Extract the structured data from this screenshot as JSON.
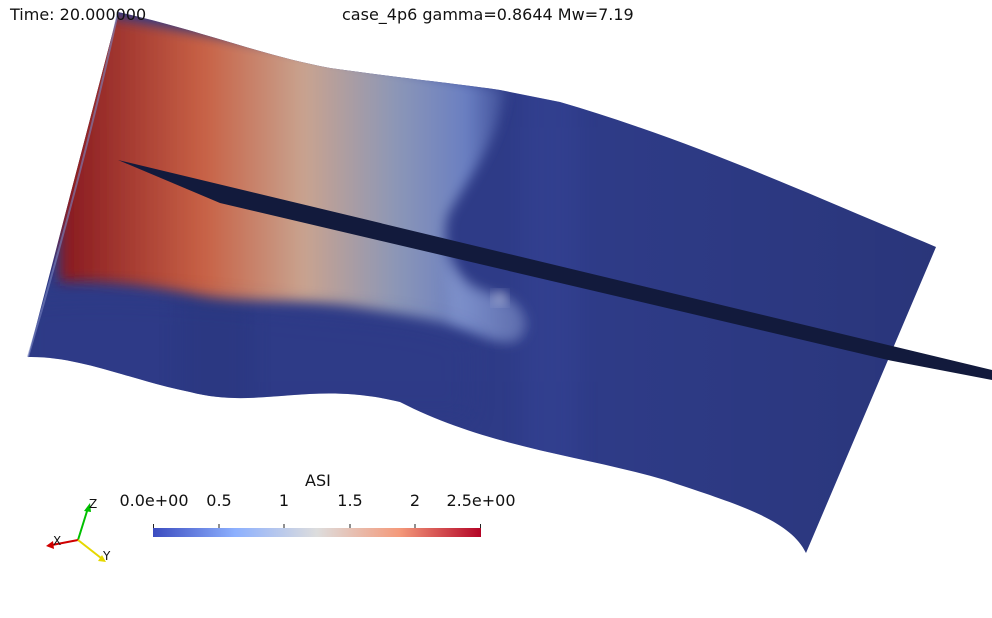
{
  "overlay": {
    "time_text": "Time: 20.000000",
    "title_text": "case_4p6 gamma=0.8644 Mw=7.19"
  },
  "colorbar": {
    "title": "ASI",
    "tick_labels": [
      "0.0e+00",
      "0.5",
      "1",
      "1.5",
      "2",
      "2.5e+00"
    ],
    "range": [
      0,
      2.5
    ],
    "colormap": "cool-to-warm",
    "colors": [
      "#3b4cc0",
      "#dddddd",
      "#b40426"
    ]
  },
  "orientation_axes": {
    "x_label": "X",
    "y_label": "Y",
    "z_label": "Z",
    "x_color": "#d00000",
    "y_color": "#e6d800",
    "z_color": "#00c000"
  },
  "scene": {
    "surface_base_color": "#2e3b87",
    "fault_plane_color": "#121a3c"
  }
}
